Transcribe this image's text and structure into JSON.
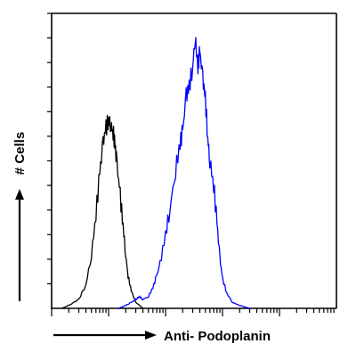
{
  "chart_data": {
    "type": "line",
    "xlabel": "Anti- Podoplanin",
    "ylabel": "# Cells",
    "x_scale": "log",
    "xlim": [
      1,
      100000
    ],
    "ylim": [
      0,
      100
    ],
    "grid": false,
    "legend": "none",
    "series": [
      {
        "color": "#000000",
        "x": [
          1.5,
          2,
          3,
          4,
          5,
          6,
          7,
          8,
          9,
          10,
          11,
          12,
          13,
          14,
          16,
          18,
          20,
          22,
          25,
          30,
          35,
          40
        ],
        "values": [
          0,
          1,
          3,
          8,
          18,
          32,
          46,
          56,
          61,
          64,
          62,
          60,
          55,
          49,
          38,
          28,
          18,
          11,
          6,
          2,
          1,
          0
        ]
      },
      {
        "color": "#0000ff",
        "x": [
          15,
          20,
          25,
          30,
          35,
          40,
          50,
          60,
          70,
          80,
          100,
          120,
          150,
          180,
          200,
          230,
          260,
          300,
          330,
          370,
          400,
          450,
          500,
          550,
          600,
          700,
          800,
          900,
          1000,
          1200,
          1500,
          2000,
          3000
        ],
        "values": [
          0,
          1,
          2,
          3,
          4,
          3,
          4,
          7,
          11,
          15,
          25,
          34,
          47,
          56,
          60,
          72,
          75,
          82,
          92,
          82,
          87,
          78,
          71,
          58,
          50,
          42,
          29,
          17,
          10,
          5,
          2,
          1,
          0
        ]
      }
    ]
  }
}
